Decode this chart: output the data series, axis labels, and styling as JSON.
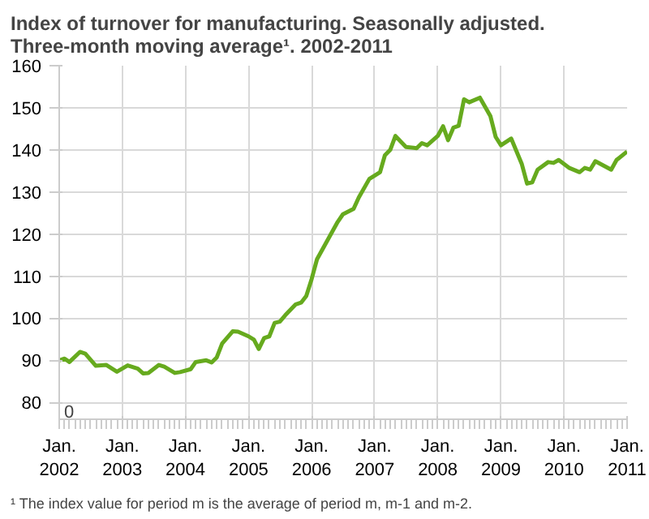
{
  "chart_data": {
    "type": "line",
    "title": "Index of turnover for manufacturing. Seasonally adjusted.\nThree-month moving average¹. 2002-2011",
    "annotations": [
      "0",
      "¹ The index value for period m is the average of period m, m-1 and m-2."
    ],
    "x": [
      "2002-01",
      "2002-02",
      "2002-03",
      "2002-05",
      "2002-06",
      "2002-08",
      "2002-10",
      "2002-12",
      "2003-02",
      "2003-04",
      "2003-05",
      "2003-06",
      "2003-08",
      "2003-09",
      "2003-11",
      "2003-12",
      "2004-02",
      "2004-03",
      "2004-05",
      "2004-06",
      "2004-07",
      "2004-08",
      "2004-10",
      "2004-11",
      "2005-01",
      "2005-02",
      "2005-03",
      "2005-04",
      "2005-05",
      "2005-06",
      "2005-07",
      "2005-08",
      "2005-10",
      "2005-11",
      "2005-12",
      "2006-01",
      "2006-02",
      "2006-04",
      "2006-06",
      "2006-07",
      "2006-09",
      "2006-10",
      "2006-12",
      "2007-02",
      "2007-03",
      "2007-04",
      "2007-05",
      "2007-07",
      "2007-09",
      "2007-10",
      "2007-11",
      "2008-01",
      "2008-02",
      "2008-03",
      "2008-04",
      "2008-05",
      "2008-06",
      "2008-07",
      "2008-09",
      "2008-11",
      "2008-12",
      "2009-01",
      "2009-03",
      "2009-05",
      "2009-06",
      "2009-07",
      "2009-08",
      "2009-10",
      "2009-11",
      "2009-12",
      "2010-02",
      "2010-04",
      "2010-05",
      "2010-06",
      "2010-07",
      "2010-10",
      "2010-11",
      "2011-01"
    ],
    "series": [
      {
        "color": "#66aa1e",
        "values": [
          90,
          90.4,
          89.6,
          92,
          91.6,
          88.7,
          88.9,
          87.3,
          88.8,
          88,
          86.9,
          87,
          88.9,
          88.5,
          87,
          87.2,
          87.9,
          89.6,
          90,
          89.5,
          90.7,
          94,
          96.9,
          96.8,
          95.7,
          94.9,
          92.7,
          95.3,
          95.7,
          98.9,
          99.2,
          100.7,
          103.3,
          103.7,
          105.3,
          109.3,
          114,
          118.4,
          122.9,
          124.7,
          126,
          128.7,
          133.1,
          134.7,
          138.7,
          140,
          143.3,
          140.7,
          140.4,
          141.6,
          141.1,
          143.3,
          145.6,
          142.3,
          145.3,
          145.7,
          152,
          151.3,
          152.4,
          148,
          143.1,
          141.1,
          142.7,
          136.7,
          132,
          132.3,
          135.3,
          137.1,
          136.9,
          137.6,
          135.7,
          134.7,
          135.7,
          135.3,
          137.3,
          135.3,
          137.6,
          139.6
        ]
      }
    ],
    "xlim": [
      "2002-01",
      "2011-01"
    ],
    "xticks": [
      {
        "value": "2002-01",
        "label": "Jan.\n2002"
      },
      {
        "value": "2003-01",
        "label": "Jan.\n2003"
      },
      {
        "value": "2004-01",
        "label": "Jan.\n2004"
      },
      {
        "value": "2005-01",
        "label": "Jan.\n2005"
      },
      {
        "value": "2006-01",
        "label": "Jan.\n2006"
      },
      {
        "value": "2007-01",
        "label": "Jan.\n2007"
      },
      {
        "value": "2008-01",
        "label": "Jan.\n2008"
      },
      {
        "value": "2009-01",
        "label": "Jan.\n2009"
      },
      {
        "value": "2010-01",
        "label": "Jan.\n2010"
      },
      {
        "value": "2011-01",
        "label": "Jan.\n2011"
      }
    ],
    "ylim": [
      76,
      160
    ],
    "yticks": [
      80,
      90,
      100,
      110,
      120,
      130,
      140,
      150,
      160
    ],
    "grid": true,
    "marker": "none",
    "line_style": "solid"
  }
}
